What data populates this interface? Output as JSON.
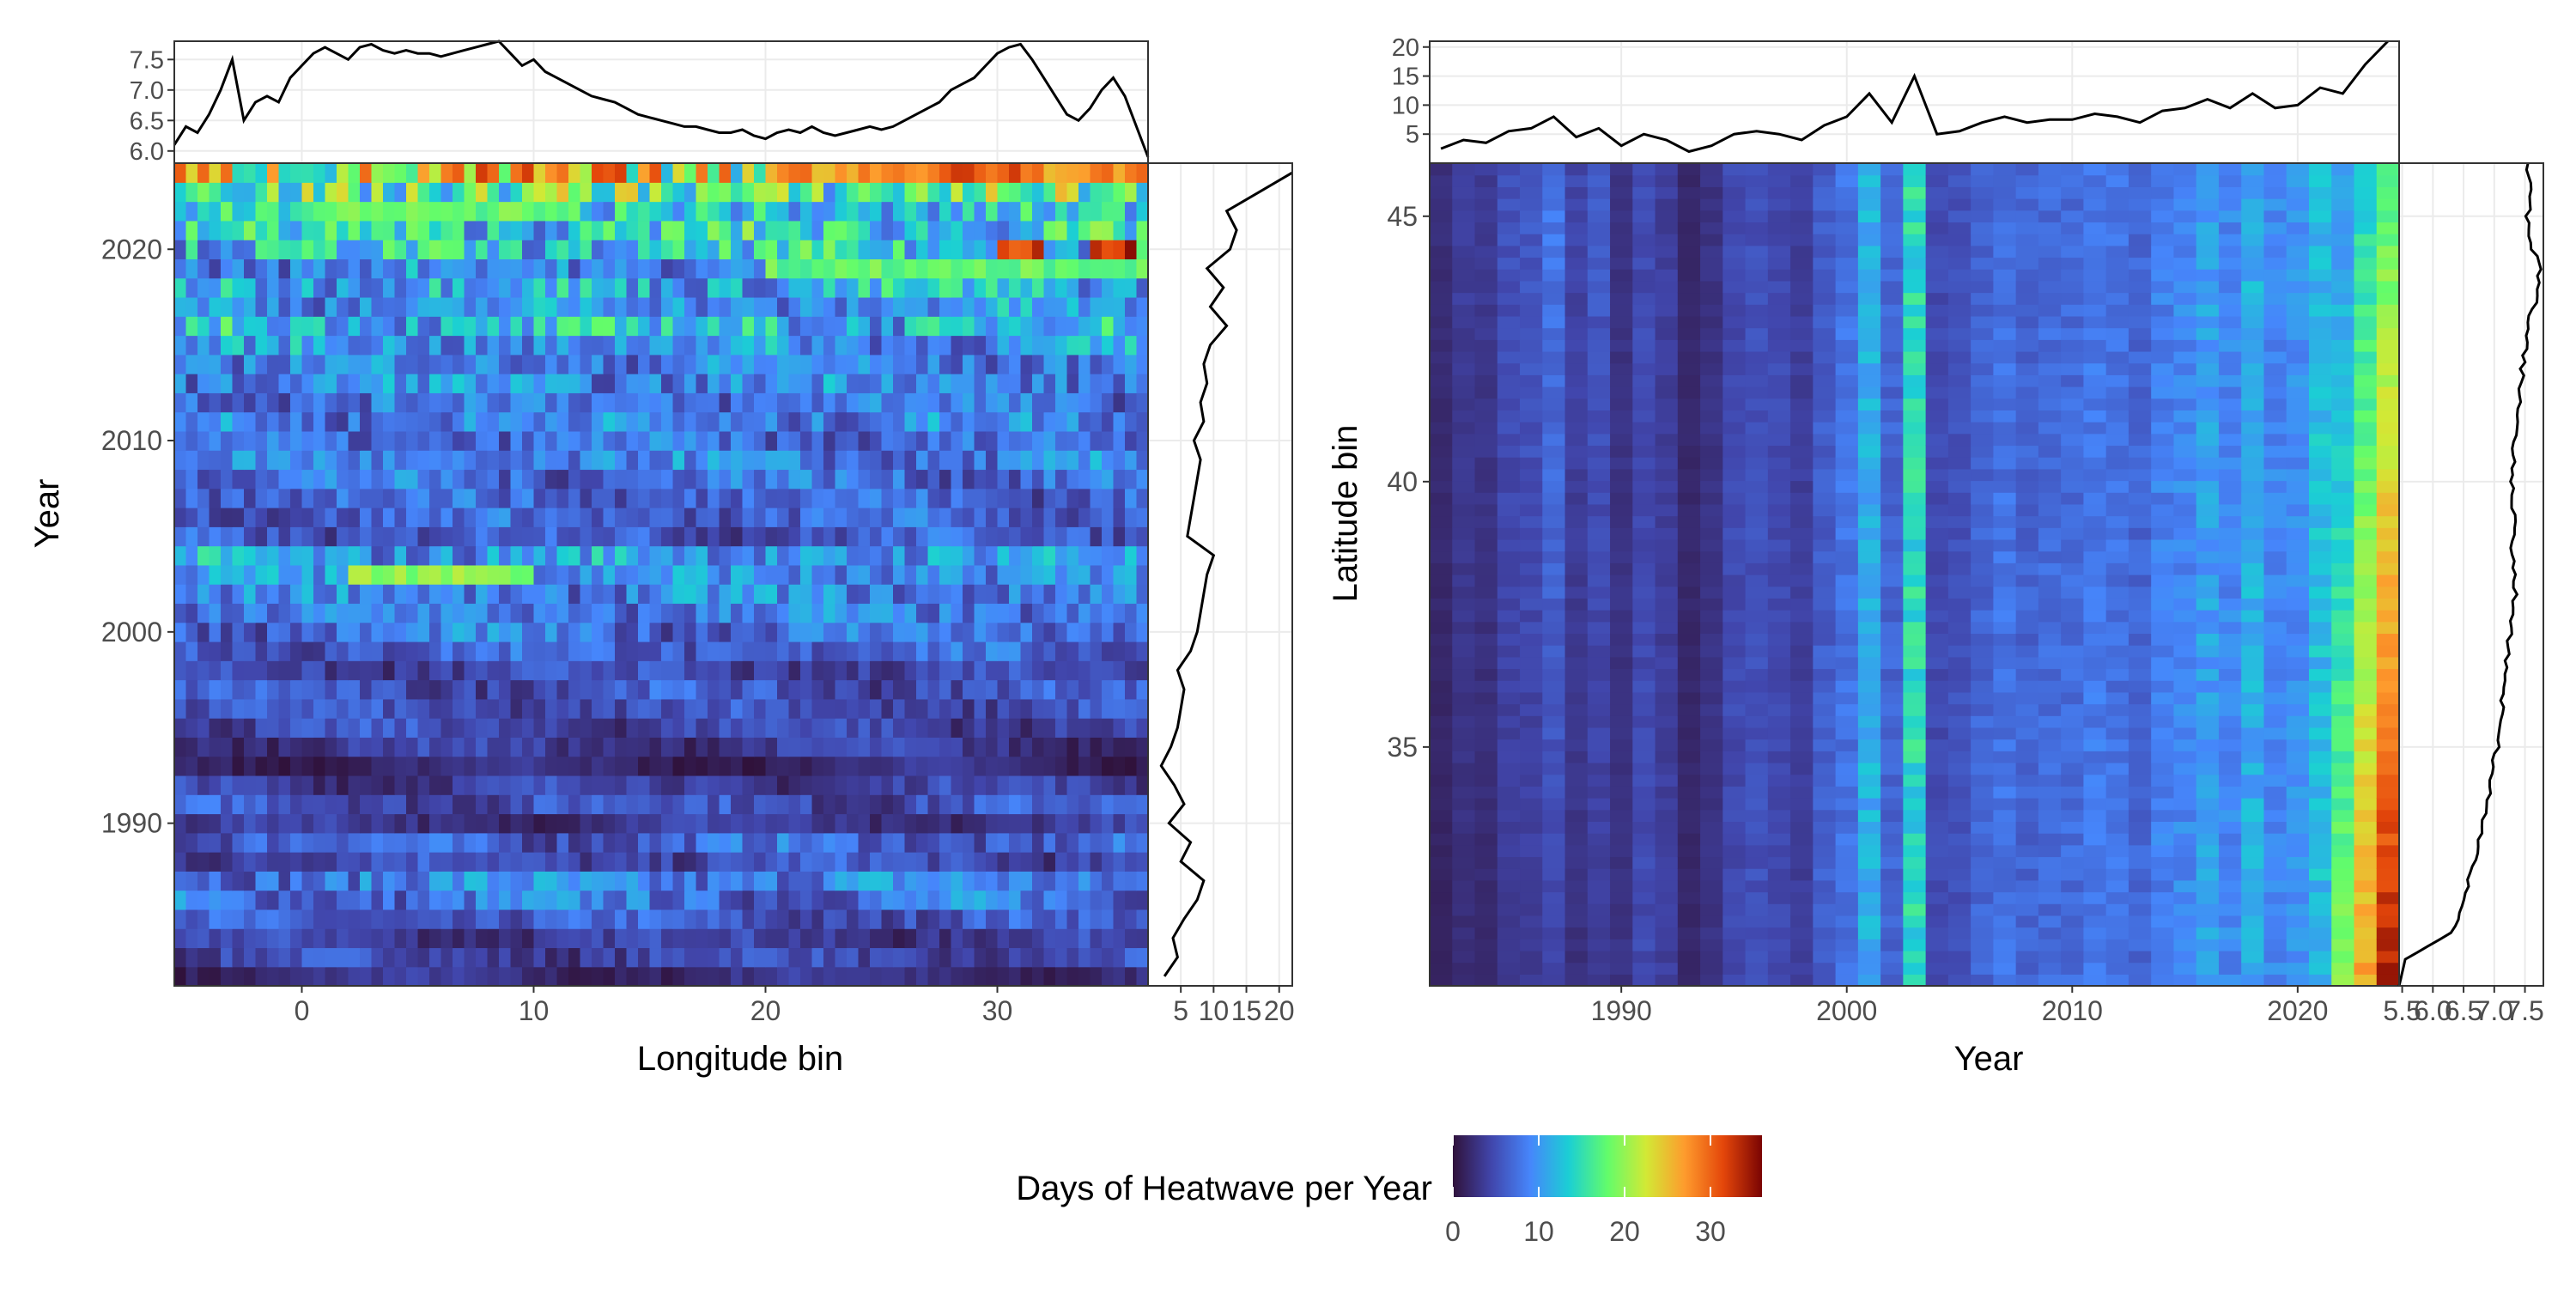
{
  "chart_data": [
    {
      "type": "heatmap",
      "xlabel": "Longitude bin",
      "ylabel": "Year",
      "xlim": [
        -5.5,
        36.5
      ],
      "ylim": [
        1981.5,
        2024.5
      ],
      "x_ticks": [
        0,
        10,
        20,
        30
      ],
      "y_ticks": [
        1990,
        2000,
        2010,
        2020
      ],
      "years": [
        1982,
        1983,
        1984,
        1985,
        1986,
        1987,
        1988,
        1989,
        1990,
        1991,
        1992,
        1993,
        1994,
        1995,
        1996,
        1997,
        1998,
        1999,
        2000,
        2001,
        2002,
        2003,
        2004,
        2005,
        2006,
        2007,
        2008,
        2009,
        2010,
        2011,
        2012,
        2013,
        2014,
        2015,
        2016,
        2017,
        2018,
        2019,
        2020,
        2021,
        2022,
        2023,
        2024
      ],
      "row_mean_days": [
        2.5,
        4.5,
        3.8,
        5.5,
        7.5,
        8.5,
        5.0,
        6.5,
        3.2,
        5.5,
        4.0,
        2.0,
        3.5,
        4.5,
        5.0,
        5.5,
        4.5,
        6.5,
        7.5,
        8.0,
        8.5,
        9.0,
        10.0,
        6.0,
        6.5,
        7.0,
        7.5,
        8.0,
        7.0,
        8.5,
        8.0,
        9.0,
        8.5,
        9.5,
        12.0,
        9.5,
        11.5,
        9.0,
        12.5,
        13.5,
        12.0,
        17.0,
        22.0
      ],
      "hotspots": [
        {
          "year": 2024,
          "lon_range": [
            27,
            31
          ],
          "days": 33
        },
        {
          "year": 2020,
          "lon_range": [
            30,
            32
          ],
          "days": 34
        },
        {
          "year": 2020,
          "lon_range": [
            34,
            36
          ],
          "days": 35
        },
        {
          "year": 2003,
          "lon_range": [
            2,
            10
          ],
          "days": 21
        },
        {
          "year": 2022,
          "lon_range": [
            0,
            12
          ],
          "days": 19
        }
      ],
      "marginal_top": {
        "ylim": [
          5.8,
          7.8
        ],
        "y_ticks": [
          6.0,
          6.5,
          7.0,
          7.5
        ],
        "x": [
          -5.5,
          -5,
          -4.5,
          -4,
          -3.5,
          -3,
          -2.5,
          -2,
          -1.5,
          -1,
          -0.5,
          0,
          0.5,
          1,
          1.5,
          2,
          2.5,
          3,
          3.5,
          4,
          4.5,
          5,
          5.5,
          6,
          6.5,
          7,
          7.5,
          8,
          8.5,
          9,
          9.5,
          10,
          10.5,
          11,
          11.5,
          12,
          12.5,
          13,
          13.5,
          14,
          14.5,
          15,
          15.5,
          16,
          16.5,
          17,
          17.5,
          18,
          18.5,
          19,
          19.5,
          20,
          20.5,
          21,
          21.5,
          22,
          22.5,
          23,
          23.5,
          24,
          24.5,
          25,
          25.5,
          26,
          26.5,
          27,
          27.5,
          28,
          28.5,
          29,
          29.5,
          30,
          30.5,
          31,
          31.5,
          32,
          32.5,
          33,
          33.5,
          34,
          34.5,
          35,
          35.5,
          36,
          36.5
        ],
        "y": [
          6.1,
          6.4,
          6.3,
          6.6,
          7.0,
          7.5,
          6.5,
          6.8,
          6.9,
          6.8,
          7.2,
          7.4,
          7.6,
          7.7,
          7.6,
          7.5,
          7.7,
          7.75,
          7.65,
          7.6,
          7.65,
          7.6,
          7.6,
          7.55,
          7.6,
          7.65,
          7.7,
          7.75,
          7.8,
          7.6,
          7.4,
          7.5,
          7.3,
          7.2,
          7.1,
          7.0,
          6.9,
          6.85,
          6.8,
          6.7,
          6.6,
          6.55,
          6.5,
          6.45,
          6.4,
          6.4,
          6.35,
          6.3,
          6.3,
          6.35,
          6.25,
          6.2,
          6.3,
          6.35,
          6.3,
          6.4,
          6.3,
          6.25,
          6.3,
          6.35,
          6.4,
          6.35,
          6.4,
          6.5,
          6.6,
          6.7,
          6.8,
          7.0,
          7.1,
          7.2,
          7.4,
          7.6,
          7.7,
          7.75,
          7.5,
          7.2,
          6.9,
          6.6,
          6.5,
          6.7,
          7.0,
          7.2,
          6.9,
          6.4,
          5.9
        ]
      },
      "marginal_right": {
        "xlim": [
          0,
          22
        ],
        "x_ticks": [
          5,
          10,
          15,
          20
        ]
      }
    },
    {
      "type": "heatmap",
      "xlabel": "Year",
      "ylabel": "Latitude bin",
      "xlim": [
        1981.5,
        2024.5
      ],
      "ylim": [
        30.5,
        46.0
      ],
      "x_ticks": [
        1990,
        2000,
        2010,
        2020
      ],
      "y_ticks": [
        35,
        40,
        45
      ],
      "col_mean_days": [
        2.5,
        4.0,
        3.5,
        5.5,
        6.0,
        8.0,
        4.5,
        6.0,
        3.0,
        5.0,
        4.0,
        2.0,
        3.0,
        5.0,
        5.5,
        5.0,
        4.0,
        6.5,
        8.0,
        12.0,
        7.0,
        15.0,
        5.0,
        5.5,
        7.0,
        8.0,
        7.0,
        7.5,
        7.5,
        8.5,
        8.0,
        7.0,
        9.0,
        9.5,
        11.0,
        9.5,
        12.0,
        9.5,
        10.0,
        13.0,
        12.0,
        17.0,
        22.0
      ],
      "marginal_top": {
        "ylim": [
          0,
          21
        ],
        "y_ticks": [
          5,
          10,
          15,
          20
        ]
      },
      "marginal_right": {
        "xlim": [
          5.45,
          7.8
        ],
        "x_ticks": [
          5.5,
          6.0,
          6.5,
          7.0,
          7.5
        ],
        "tick_labels": [
          "5.5",
          "6.0",
          "6.5",
          "7.0",
          "7.5"
        ],
        "y": [
          30.5,
          31.0,
          31.5,
          32.0,
          32.5,
          33.0,
          33.5,
          34.0,
          34.5,
          35.0,
          35.5,
          36.0,
          36.5,
          37.0,
          37.5,
          38.0,
          38.5,
          39.0,
          39.5,
          40.0,
          40.5,
          41.0,
          41.5,
          42.0,
          42.5,
          43.0,
          43.5,
          44.0,
          44.5,
          45.0,
          45.5,
          46.0
        ],
        "x": [
          5.45,
          5.55,
          6.3,
          6.5,
          6.6,
          6.7,
          6.8,
          6.9,
          6.95,
          7.05,
          7.1,
          7.15,
          7.2,
          7.25,
          7.3,
          7.35,
          7.3,
          7.3,
          7.32,
          7.3,
          7.3,
          7.35,
          7.4,
          7.45,
          7.5,
          7.55,
          7.7,
          7.75,
          7.6,
          7.55,
          7.6,
          7.55
        ]
      }
    }
  ],
  "legend": {
    "title": "Days of Heatwave per Year",
    "ticks": [
      0,
      10,
      20,
      30
    ],
    "range": [
      0,
      36
    ],
    "colors": [
      "#30123b",
      "#4146ac",
      "#4686fb",
      "#1bcfd4",
      "#62fc6b",
      "#d2e935",
      "#fe9b2d",
      "#e4460a",
      "#7a0403"
    ]
  }
}
